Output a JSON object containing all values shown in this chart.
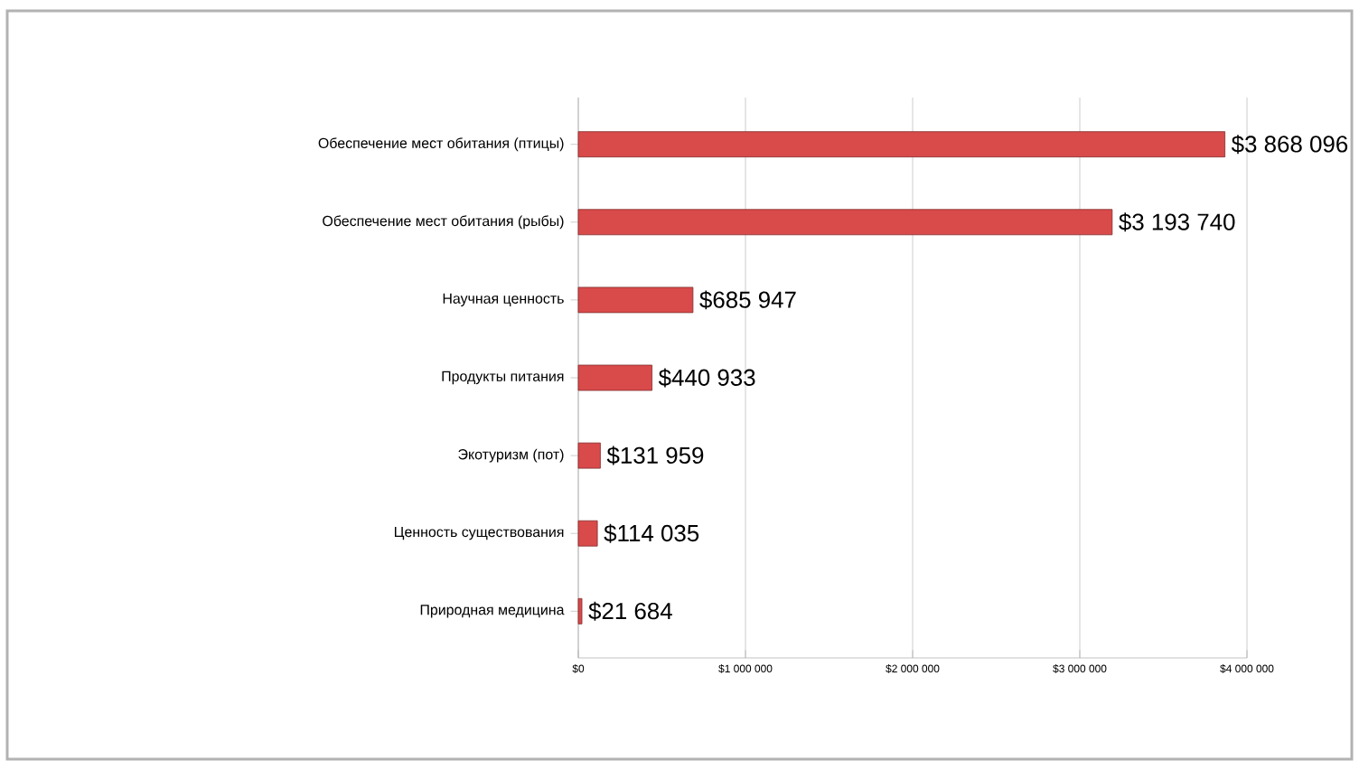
{
  "chart_data": {
    "type": "bar",
    "orientation": "horizontal",
    "categories": [
      "Обеспечение мест обитания (птицы)",
      "Обеспечение мест обитания (рыбы)",
      "Научная ценность",
      "Продукты питания",
      "Экотуризм (пот)",
      "Ценность существования",
      "Природная медицина"
    ],
    "values": [
      3868096,
      3193740,
      685947,
      440933,
      131959,
      114035,
      21684
    ],
    "value_labels": [
      "$3 868 096",
      "$3 193 740",
      "$685 947",
      "$440 933",
      "$131 959",
      "$114 035",
      "$21 684"
    ],
    "color": "#d94a4a",
    "xlim": [
      0,
      4000000
    ],
    "xticks": [
      {
        "value": 0,
        "label": "$0"
      },
      {
        "value": 1000000,
        "label": "$1 000 000"
      },
      {
        "value": 2000000,
        "label": "$2 000 000"
      },
      {
        "value": 3000000,
        "label": "$3 000 000"
      },
      {
        "value": 4000000,
        "label": "$4 000 000"
      }
    ],
    "grid": "x"
  }
}
